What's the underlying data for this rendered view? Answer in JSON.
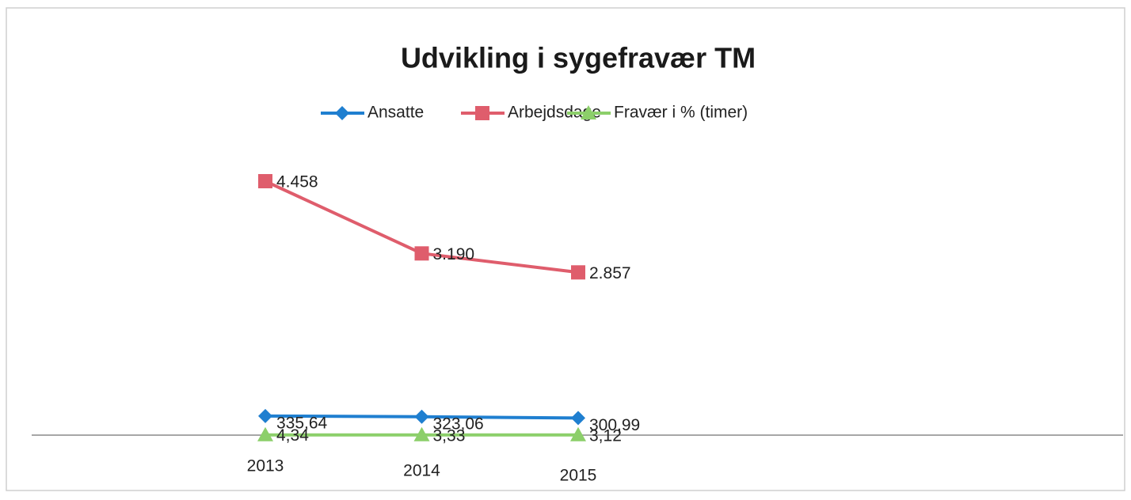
{
  "chart_data": {
    "type": "line",
    "title": "Udvikling i sygefravær TM",
    "categories": [
      "2013",
      "2014",
      "2015"
    ],
    "ylim": [
      0,
      5000
    ],
    "legend": "top",
    "series": [
      {
        "name": "Ansatte",
        "color": "#1f7fd0",
        "marker": "diamond",
        "values": [
          335.64,
          323.06,
          300.99
        ],
        "value_labels": [
          "335,64",
          "323,06",
          "300,99"
        ]
      },
      {
        "name": "Arbejdsdage",
        "color": "#df5d6c",
        "marker": "square",
        "values": [
          4458,
          3190,
          2857
        ],
        "value_labels": [
          "4.458",
          "3.190",
          "2.857"
        ]
      },
      {
        "name": "Fravær i % (timer)",
        "color": "#8ccf6a",
        "marker": "triangle",
        "values": [
          4.34,
          3.33,
          3.12
        ],
        "value_labels": [
          "4,34",
          "3,33",
          "3,12"
        ]
      }
    ]
  }
}
